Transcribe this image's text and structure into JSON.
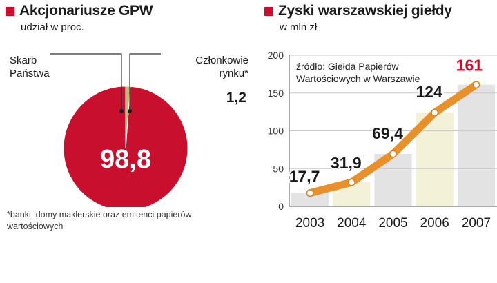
{
  "colors": {
    "accent": "#c8102e",
    "secondary": "#c9b86a",
    "line": "#e8912a",
    "bar": "#e3e3e3",
    "bar_highlight": "#f3f1d8"
  },
  "left": {
    "title": "Akcjonariusze GPW",
    "subtitle": "udział w proc.",
    "footnote": "*banki, domy maklerskie oraz emitenci papierów wartościowych"
  },
  "right": {
    "title": "Zyski warszawskiej giełdy",
    "subtitle": "w mln zł",
    "source": [
      "źródło: Giełda Papierów",
      "Wartościowych w Warszawie"
    ]
  },
  "chart_data": [
    {
      "type": "pie",
      "title": "Akcjonariusze GPW",
      "subtitle": "udział w proc.",
      "slices": [
        {
          "label": "Skarb Państwa",
          "label_lines": [
            "Skarb",
            "Państwa"
          ],
          "value": 98.8,
          "value_label": "98,8",
          "color": "#c8102e"
        },
        {
          "label": "Członkowie rynku*",
          "label_lines": [
            "Członkowie",
            "rynku*"
          ],
          "value": 1.2,
          "value_label": "1,2",
          "color": "#c9b86a"
        }
      ]
    },
    {
      "type": "line",
      "title": "Zyski warszawskiej giełdy",
      "subtitle": "w mln zł",
      "categories": [
        "2003",
        "2004",
        "2005",
        "2006",
        "2007"
      ],
      "values": [
        17.7,
        31.9,
        69.4,
        124,
        161
      ],
      "value_labels": [
        "17,7",
        "31,9",
        "69,4",
        "124",
        "161"
      ],
      "ylim": [
        0,
        200
      ],
      "yticks": [
        0,
        50,
        100,
        150,
        200
      ],
      "ytick_labels": [
        "0",
        "50",
        "100",
        "150",
        "200"
      ],
      "grid": true
    }
  ]
}
